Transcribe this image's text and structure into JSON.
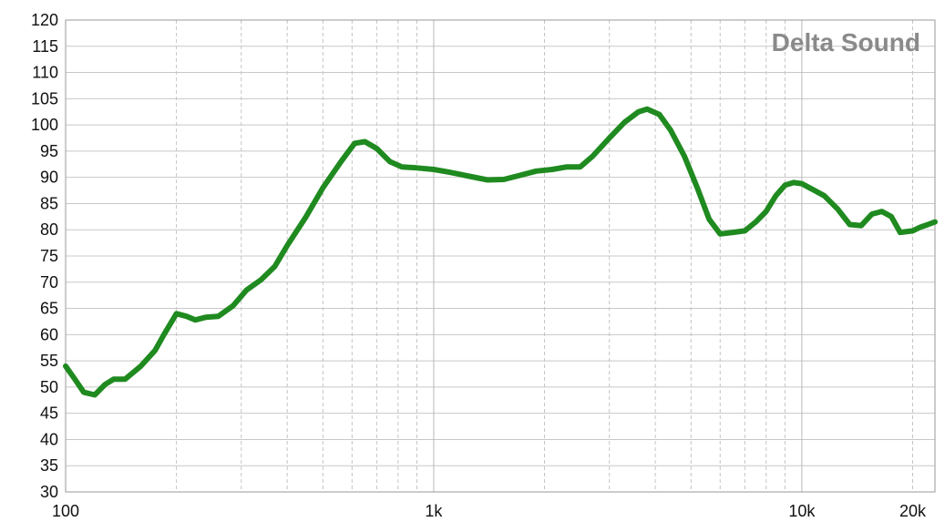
{
  "brand_label": "Delta Sound",
  "colors": {
    "series_line": "#1f8a1f",
    "grid": "#c4c4c4",
    "background": "#ffffff"
  },
  "chart_data": {
    "type": "line",
    "title": "",
    "xlabel": "",
    "ylabel": "",
    "x_scale": "log",
    "xlim": [
      100,
      23000
    ],
    "ylim": [
      30,
      120
    ],
    "grid": true,
    "x_tick_labels": [
      {
        "value": 100,
        "label": "100"
      },
      {
        "value": 1000,
        "label": "1k"
      },
      {
        "value": 10000,
        "label": "10k"
      },
      {
        "value": 20000,
        "label": "20k"
      }
    ],
    "y_ticks": [
      30,
      35,
      40,
      45,
      50,
      55,
      60,
      65,
      70,
      75,
      80,
      85,
      90,
      95,
      100,
      105,
      110,
      115,
      120
    ],
    "series": [
      {
        "values": [
          [
            100,
            54
          ],
          [
            106,
            51.5
          ],
          [
            112,
            49
          ],
          [
            120,
            48.5
          ],
          [
            128,
            50.5
          ],
          [
            135,
            51.5
          ],
          [
            145,
            51.5
          ],
          [
            160,
            54
          ],
          [
            175,
            57
          ],
          [
            185,
            60
          ],
          [
            200,
            64
          ],
          [
            213,
            63.5
          ],
          [
            225,
            62.8
          ],
          [
            240,
            63.3
          ],
          [
            260,
            63.5
          ],
          [
            285,
            65.5
          ],
          [
            310,
            68.5
          ],
          [
            340,
            70.5
          ],
          [
            370,
            73
          ],
          [
            400,
            77
          ],
          [
            450,
            82.5
          ],
          [
            500,
            88
          ],
          [
            560,
            93
          ],
          [
            610,
            96.5
          ],
          [
            650,
            96.8
          ],
          [
            700,
            95.5
          ],
          [
            760,
            93
          ],
          [
            820,
            92
          ],
          [
            900,
            91.8
          ],
          [
            1000,
            91.5
          ],
          [
            1100,
            91
          ],
          [
            1250,
            90.2
          ],
          [
            1400,
            89.5
          ],
          [
            1550,
            89.6
          ],
          [
            1700,
            90.3
          ],
          [
            1900,
            91.2
          ],
          [
            2100,
            91.5
          ],
          [
            2300,
            92
          ],
          [
            2500,
            92
          ],
          [
            2700,
            94
          ],
          [
            3000,
            97.5
          ],
          [
            3300,
            100.5
          ],
          [
            3600,
            102.5
          ],
          [
            3800,
            103
          ],
          [
            4100,
            102
          ],
          [
            4400,
            99
          ],
          [
            4800,
            94
          ],
          [
            5200,
            88
          ],
          [
            5600,
            82
          ],
          [
            6000,
            79.2
          ],
          [
            6500,
            79.5
          ],
          [
            7000,
            79.8
          ],
          [
            7500,
            81.5
          ],
          [
            8000,
            83.5
          ],
          [
            8500,
            86.5
          ],
          [
            9000,
            88.5
          ],
          [
            9500,
            89
          ],
          [
            10000,
            88.8
          ],
          [
            10500,
            88
          ],
          [
            11500,
            86.5
          ],
          [
            12500,
            84
          ],
          [
            13500,
            81
          ],
          [
            14500,
            80.8
          ],
          [
            15500,
            83
          ],
          [
            16500,
            83.5
          ],
          [
            17500,
            82.5
          ],
          [
            18500,
            79.5
          ],
          [
            20000,
            79.8
          ],
          [
            21000,
            80.5
          ],
          [
            22000,
            81
          ],
          [
            23000,
            81.5
          ]
        ]
      }
    ]
  }
}
